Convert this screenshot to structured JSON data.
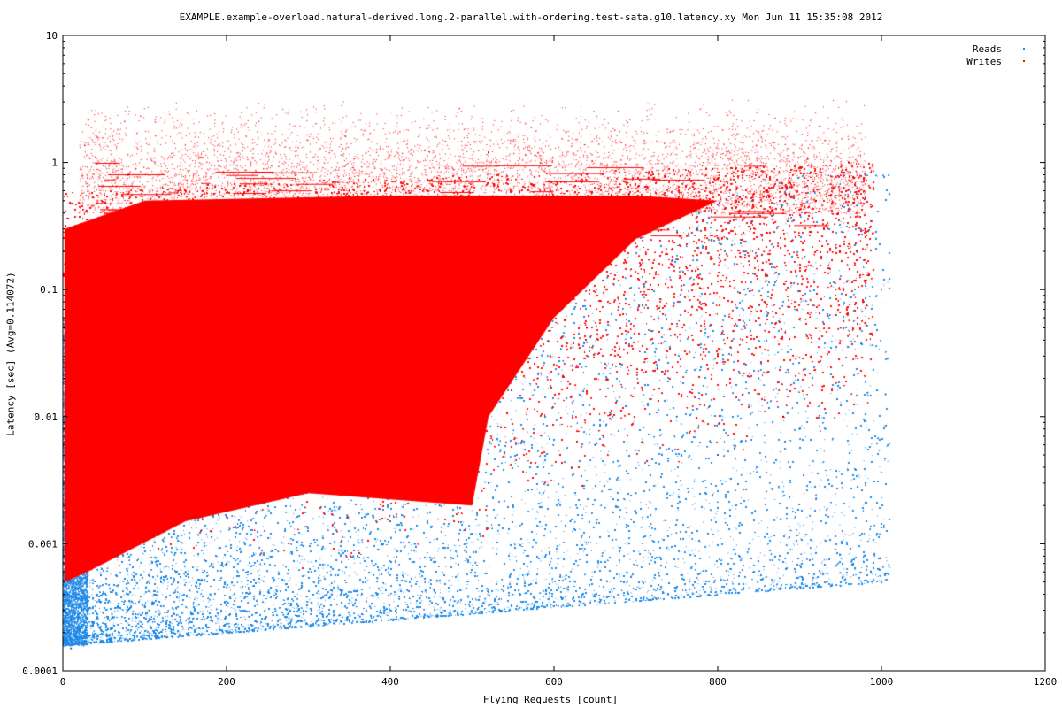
{
  "chart_data": {
    "type": "scatter",
    "title": "EXAMPLE.example-overload.natural-derived.long.2-parallel.with-ordering.test-sata.g10.latency.xy Mon Jun 11 15:35:08 2012",
    "xlabel": "Flying Requests [count]",
    "ylabel": "Latency [sec]   (Avg=0.114072)",
    "xlim": [
      0,
      1200
    ],
    "ylim": [
      0.0001,
      10
    ],
    "yscale": "log",
    "xticks": [
      0,
      200,
      400,
      600,
      800,
      1000,
      1200
    ],
    "yticks": [
      0.0001,
      0.001,
      0.01,
      0.1,
      1,
      10
    ],
    "ytick_labels": [
      "0.0001",
      "0.001",
      "0.01",
      "0.1",
      "1",
      "10"
    ],
    "grid": false,
    "legend_position": "top-right",
    "series": [
      {
        "name": "Reads",
        "color": "#1e88e5",
        "points": [
          [
            2,
            0.00025
          ],
          [
            5,
            0.0002
          ],
          [
            8,
            0.0003
          ],
          [
            10,
            0.00015
          ],
          [
            15,
            0.0004
          ],
          [
            20,
            0.00022
          ],
          [
            30,
            0.0003
          ],
          [
            45,
            0.00035
          ],
          [
            60,
            0.00028
          ],
          [
            80,
            0.0004
          ],
          [
            100,
            0.00032
          ],
          [
            120,
            0.0005
          ],
          [
            150,
            0.0006
          ],
          [
            180,
            0.0004
          ],
          [
            200,
            0.0007
          ],
          [
            230,
            0.0005
          ],
          [
            260,
            0.0009
          ],
          [
            300,
            0.0006
          ],
          [
            330,
            0.0012
          ],
          [
            360,
            0.0008
          ],
          [
            400,
            0.0015
          ],
          [
            430,
            0.001
          ],
          [
            460,
            0.002
          ],
          [
            500,
            0.0012
          ],
          [
            520,
            0.003
          ],
          [
            550,
            0.002
          ],
          [
            580,
            0.004
          ],
          [
            620,
            0.0015
          ],
          [
            650,
            0.006
          ],
          [
            700,
            0.0025
          ],
          [
            750,
            0.01
          ],
          [
            800,
            0.005
          ],
          [
            850,
            0.02
          ],
          [
            900,
            0.008
          ],
          [
            950,
            0.05
          ],
          [
            1000,
            0.1
          ],
          [
            1005,
            0.015
          ]
        ]
      },
      {
        "name": "Writes",
        "color": "#ff0000",
        "points": [
          [
            5,
            0.001
          ],
          [
            10,
            0.05
          ],
          [
            20,
            0.3
          ],
          [
            40,
            0.01
          ],
          [
            60,
            0.2
          ],
          [
            80,
            0.8
          ],
          [
            100,
            0.004
          ],
          [
            120,
            0.3
          ],
          [
            150,
            0.06
          ],
          [
            180,
            0.4
          ],
          [
            200,
            0.02
          ],
          [
            220,
            0.5
          ],
          [
            250,
            0.1
          ],
          [
            280,
            0.003
          ],
          [
            300,
            0.4
          ],
          [
            330,
            0.03
          ],
          [
            350,
            0.6
          ],
          [
            380,
            0.08
          ],
          [
            400,
            0.005
          ],
          [
            430,
            0.3
          ],
          [
            450,
            0.02
          ],
          [
            480,
            0.5
          ],
          [
            500,
            0.05
          ],
          [
            520,
            1.2
          ],
          [
            550,
            0.2
          ],
          [
            580,
            0.02
          ],
          [
            600,
            0.4
          ],
          [
            640,
            0.05
          ],
          [
            680,
            0.3
          ],
          [
            720,
            0.1
          ],
          [
            760,
            0.4
          ],
          [
            800,
            0.03
          ],
          [
            840,
            0.3
          ],
          [
            880,
            0.01
          ],
          [
            920,
            0.5
          ],
          [
            960,
            1.0
          ],
          [
            980,
            0.3
          ]
        ]
      }
    ]
  }
}
